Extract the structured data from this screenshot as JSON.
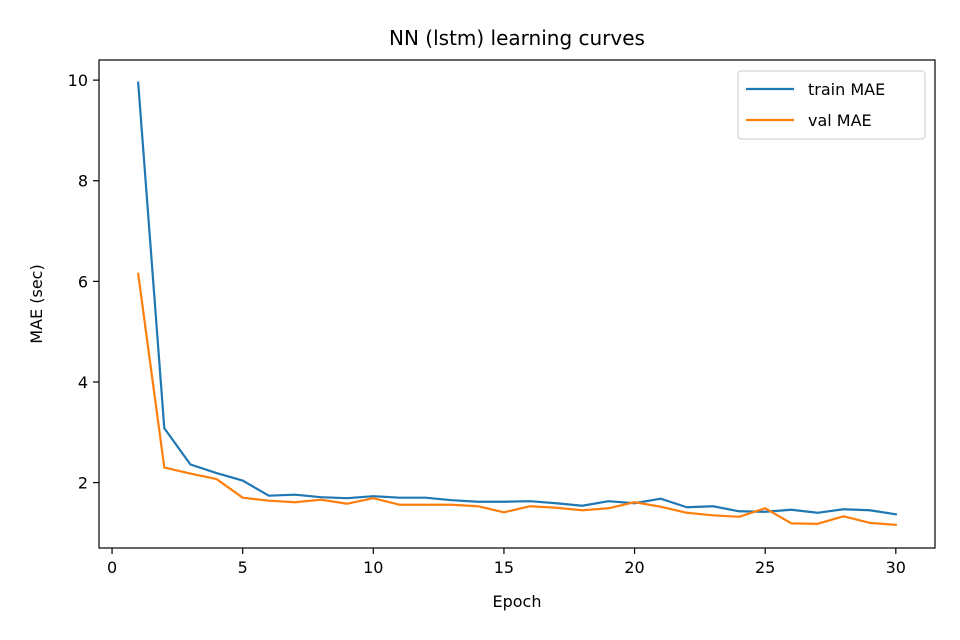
{
  "chart_data": {
    "type": "line",
    "title": "NN (lstm) learning curves",
    "xlabel": "Epoch",
    "ylabel": "MAE (sec)",
    "xlim": [
      -0.5,
      31.5
    ],
    "ylim": [
      0.7,
      10.4
    ],
    "xticks": [
      0,
      5,
      10,
      15,
      20,
      25,
      30
    ],
    "yticks": [
      2,
      4,
      6,
      8,
      10
    ],
    "grid": false,
    "legend_position": "top-right",
    "x": [
      1,
      2,
      3,
      4,
      5,
      6,
      7,
      8,
      9,
      10,
      11,
      12,
      13,
      14,
      15,
      16,
      17,
      18,
      19,
      20,
      21,
      22,
      23,
      24,
      25,
      26,
      27,
      28,
      29,
      30
    ],
    "series": [
      {
        "name": "train MAE",
        "color": "#1f77b4",
        "values": [
          9.95,
          3.08,
          2.36,
          2.19,
          2.04,
          1.74,
          1.76,
          1.71,
          1.69,
          1.73,
          1.7,
          1.7,
          1.65,
          1.62,
          1.62,
          1.63,
          1.59,
          1.54,
          1.63,
          1.59,
          1.68,
          1.51,
          1.53,
          1.43,
          1.42,
          1.46,
          1.4,
          1.47,
          1.45,
          1.37
        ]
      },
      {
        "name": "val MAE",
        "color": "#ff7f0e",
        "values": [
          6.15,
          2.3,
          2.18,
          2.07,
          1.7,
          1.64,
          1.61,
          1.66,
          1.58,
          1.69,
          1.56,
          1.56,
          1.56,
          1.53,
          1.41,
          1.53,
          1.5,
          1.45,
          1.49,
          1.61,
          1.52,
          1.4,
          1.35,
          1.32,
          1.49,
          1.19,
          1.18,
          1.33,
          1.2,
          1.16
        ]
      }
    ]
  }
}
